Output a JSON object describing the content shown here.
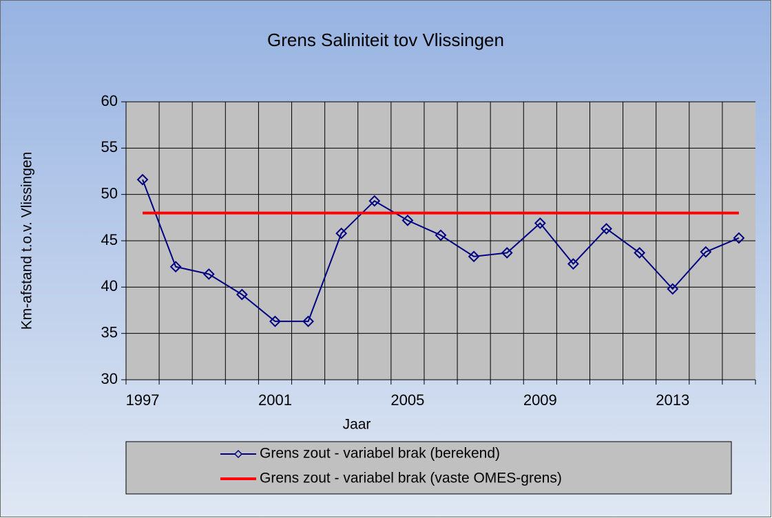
{
  "chart_data": {
    "type": "line",
    "title": "Grens Saliniteit tov Vlissingen",
    "x_label": "Jaar",
    "y_label": "Km-afstand t.o.v. Vlissingen",
    "categories": [
      "1997",
      null,
      null,
      null,
      "2001",
      null,
      null,
      null,
      "2005",
      null,
      null,
      null,
      "2009",
      null,
      null,
      null,
      "2013",
      null,
      null
    ],
    "series": [
      {
        "name": "Grens zout - variabel brak (berekend)",
        "color": "#000080",
        "marker": "diamond",
        "values": [
          51.6,
          42.2,
          41.4,
          39.2,
          36.3,
          36.3,
          45.8,
          49.3,
          47.2,
          45.6,
          43.3,
          43.7,
          46.9,
          42.5,
          46.3,
          43.7,
          39.8,
          43.8,
          45.3
        ]
      },
      {
        "name": "Grens zout - variabel brak (vaste OMES-grens)",
        "color": "#ff0000",
        "marker": "none",
        "values": [
          48,
          48,
          48,
          48,
          48,
          48,
          48,
          48,
          48,
          48,
          48,
          48,
          48,
          48,
          48,
          48,
          48,
          48,
          48
        ]
      }
    ],
    "ylim": [
      30,
      60
    ],
    "yticks": [
      30,
      35,
      40,
      45,
      50,
      55,
      60
    ],
    "grid": true,
    "legend": "bottom"
  }
}
